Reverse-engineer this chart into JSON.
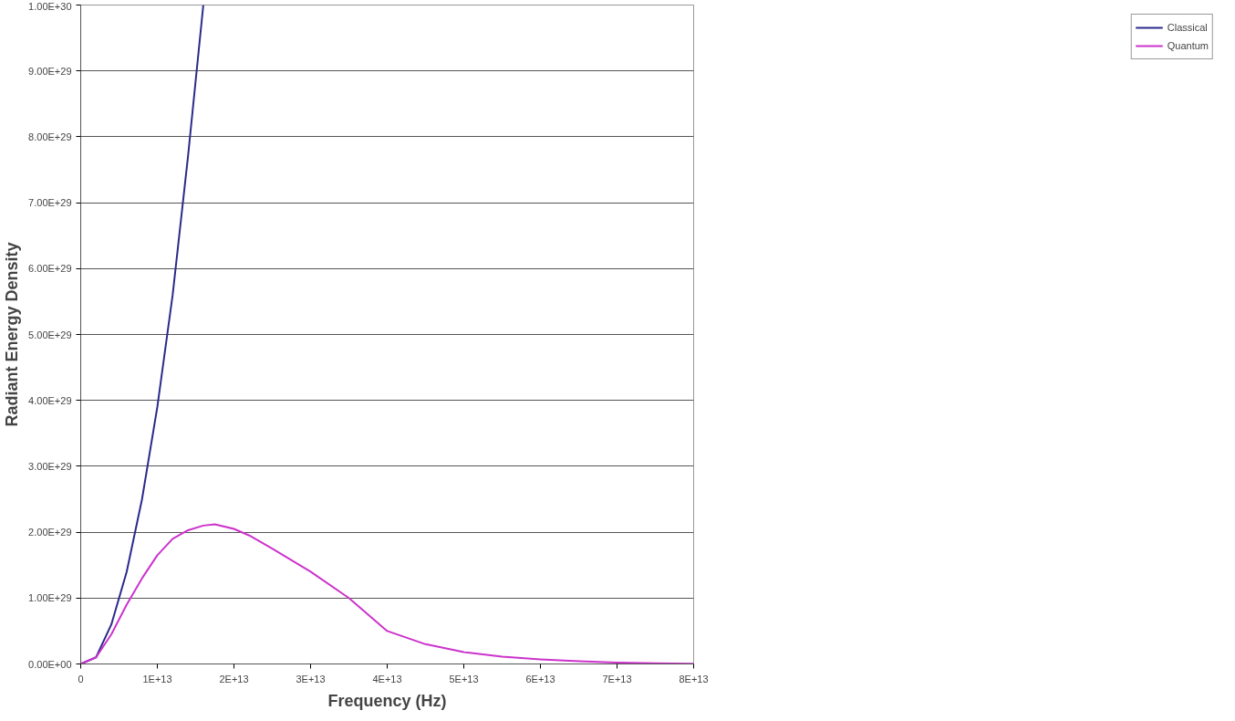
{
  "chart_data": {
    "type": "line",
    "xlabel": "Frequency (Hz)",
    "ylabel": "Radiant Energy Density",
    "xlim": [
      0,
      80000000000000.0
    ],
    "ylim": [
      0,
      1e+30
    ],
    "xticks": [
      0,
      {
        "value": 10000000000000.0,
        "label": "1E+13"
      },
      {
        "value": 20000000000000.0,
        "label": "2E+13"
      },
      {
        "value": 30000000000000.0,
        "label": "3E+13"
      },
      {
        "value": 40000000000000.0,
        "label": "4E+13"
      },
      {
        "value": 50000000000000.0,
        "label": "5E+13"
      },
      {
        "value": 60000000000000.0,
        "label": "6E+13"
      },
      {
        "value": 70000000000000.0,
        "label": "7E+13"
      },
      {
        "value": 80000000000000.0,
        "label": "8E+13"
      }
    ],
    "yticks": [
      {
        "value": 0,
        "label": "0.00E+00"
      },
      {
        "value": 1e+29,
        "label": "1.00E+29"
      },
      {
        "value": 2e+29,
        "label": "2.00E+29"
      },
      {
        "value": 3e+29,
        "label": "3.00E+29"
      },
      {
        "value": 4e+29,
        "label": "4.00E+29"
      },
      {
        "value": 5e+29,
        "label": "5.00E+29"
      },
      {
        "value": 6e+29,
        "label": "6.00E+29"
      },
      {
        "value": 7e+29,
        "label": "7.00E+29"
      },
      {
        "value": 8e+29,
        "label": "8.00E+29"
      },
      {
        "value": 9e+29,
        "label": "9.00E+29"
      },
      {
        "value": 1e+30,
        "label": "1.00E+30"
      }
    ],
    "grid": "y",
    "legend": "right",
    "marker": "none",
    "line_style": "solid",
    "series": [
      {
        "name": "Classical",
        "color": "#2a2a8c",
        "x": [
          0,
          2000000000000.0,
          4000000000000.0,
          6000000000000.0,
          8000000000000.0,
          10000000000000.0,
          12000000000000.0,
          14000000000000.0,
          16000000000000.0
        ],
        "values": [
          0,
          1e+28,
          6e+28,
          1.4e+29,
          2.5e+29,
          3.9e+29,
          5.6e+29,
          7.7e+29,
          1e+30
        ]
      },
      {
        "name": "Quantum",
        "color": "#cc33cc",
        "x": [
          0,
          2000000000000.0,
          4000000000000.0,
          6000000000000.0,
          8000000000000.0,
          10000000000000.0,
          12000000000000.0,
          14000000000000.0,
          16000000000000.0,
          17500000000000.0,
          20000000000000.0,
          22000000000000.0,
          25000000000000.0,
          30000000000000.0,
          35000000000000.0,
          40000000000000.0,
          45000000000000.0,
          50000000000000.0,
          55000000000000.0,
          60000000000000.0,
          65000000000000.0,
          70000000000000.0,
          75000000000000.0,
          80000000000000.0
        ],
        "values": [
          0,
          1e+28,
          4.5e+28,
          9e+28,
          1.3e+29,
          1.65e+29,
          1.9e+29,
          2.03e+29,
          2.1e+29,
          2.12e+29,
          2.05e+29,
          1.95e+29,
          1.75e+29,
          1.4e+29,
          1e+29,
          5e+28,
          3e+28,
          1.8e+28,
          1.1e+28,
          7e+27,
          4e+27,
          2e+27,
          1e+27,
          5e+26
        ]
      }
    ]
  }
}
